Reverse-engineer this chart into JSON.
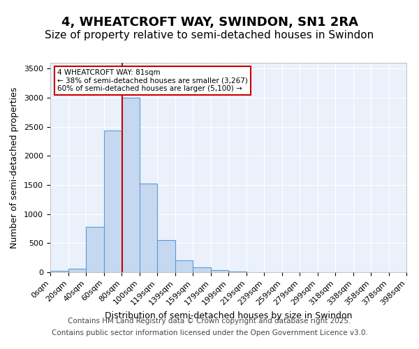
{
  "title": "4, WHEATCROFT WAY, SWINDON, SN1 2RA",
  "subtitle": "Size of property relative to semi-detached houses in Swindon",
  "xlabel": "Distribution of semi-detached houses by size in Swindon",
  "ylabel": "Number of semi-detached properties",
  "bin_labels": [
    "0sqm",
    "20sqm",
    "40sqm",
    "60sqm",
    "80sqm",
    "100sqm",
    "119sqm",
    "139sqm",
    "159sqm",
    "179sqm",
    "199sqm",
    "219sqm",
    "239sqm",
    "259sqm",
    "279sqm",
    "299sqm",
    "318sqm",
    "338sqm",
    "358sqm",
    "378sqm",
    "398sqm"
  ],
  "bar_values": [
    20,
    60,
    780,
    2440,
    3000,
    1520,
    550,
    200,
    90,
    35,
    15,
    5,
    2,
    1,
    0,
    0,
    0,
    0,
    0,
    0
  ],
  "bar_color": "#c5d8f0",
  "bar_edge_color": "#5b9bd5",
  "annotation_text": "4 WHEATCROFT WAY: 81sqm\n← 38% of semi-detached houses are smaller (3,267)\n60% of semi-detached houses are larger (5,100) →",
  "annotation_box_color": "#ffffff",
  "annotation_box_edge_color": "#cc0000",
  "vline_color": "#cc0000",
  "vline_x": 4.05,
  "ylim": [
    0,
    3600
  ],
  "yticks": [
    0,
    500,
    1000,
    1500,
    2000,
    2500,
    3000,
    3500
  ],
  "footer_line1": "Contains HM Land Registry data © Crown copyright and database right 2025.",
  "footer_line2": "Contains public sector information licensed under the Open Government Licence v3.0.",
  "background_color": "#eaf1fb",
  "fig_background_color": "#ffffff",
  "title_fontsize": 13,
  "subtitle_fontsize": 11,
  "axis_label_fontsize": 9,
  "tick_fontsize": 8,
  "annotation_fontsize": 7.5,
  "footer_fontsize": 7.5
}
